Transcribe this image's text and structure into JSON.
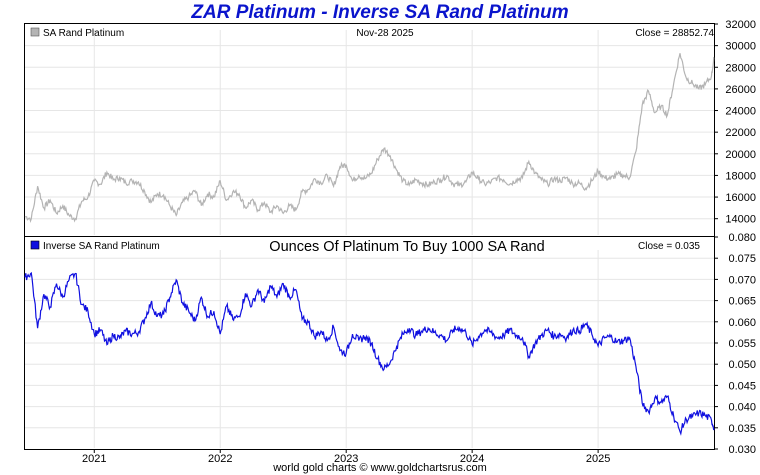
{
  "page": {
    "title": "ZAR Platinum - Inverse SA Rand Platinum",
    "footer": "world gold charts © www.goldchartsrus.com"
  },
  "colors": {
    "title": "#0a14cc",
    "top_series": "#b4b4b4",
    "bottom_series": "#1010e0",
    "grid": "#e6e6e6",
    "frame": "#000000"
  },
  "chart_data": [
    {
      "type": "line",
      "panel": "top",
      "legend": "SA Rand Platinum",
      "date_label": "Nov-28  2025",
      "close_label": "Close = 28852.74",
      "ylim": [
        12400,
        32000
      ],
      "yticks": [
        "32000",
        "30000",
        "28000",
        "26000",
        "24000",
        "22000",
        "20000",
        "18000",
        "16000",
        "14000"
      ],
      "ytick_values": [
        32000,
        30000,
        28000,
        26000,
        24000,
        22000,
        20000,
        18000,
        16000,
        14000
      ],
      "x_range": [
        2020.45,
        2025.92
      ],
      "series": [
        {
          "name": "SA Rand Platinum",
          "x": [
            2020.45,
            2020.5,
            2020.55,
            2020.6,
            2020.65,
            2020.7,
            2020.75,
            2020.8,
            2020.85,
            2020.9,
            2020.95,
            2021.0,
            2021.05,
            2021.1,
            2021.15,
            2021.2,
            2021.25,
            2021.3,
            2021.35,
            2021.4,
            2021.45,
            2021.5,
            2021.55,
            2021.6,
            2021.65,
            2021.7,
            2021.75,
            2021.8,
            2021.85,
            2021.9,
            2021.95,
            2022.0,
            2022.05,
            2022.1,
            2022.15,
            2022.2,
            2022.25,
            2022.3,
            2022.35,
            2022.4,
            2022.45,
            2022.5,
            2022.55,
            2022.6,
            2022.65,
            2022.7,
            2022.75,
            2022.8,
            2022.85,
            2022.9,
            2022.95,
            2023.0,
            2023.05,
            2023.1,
            2023.15,
            2023.2,
            2023.25,
            2023.3,
            2023.35,
            2023.4,
            2023.45,
            2023.5,
            2023.55,
            2023.6,
            2023.65,
            2023.7,
            2023.75,
            2023.8,
            2023.85,
            2023.9,
            2023.95,
            2024.0,
            2024.05,
            2024.1,
            2024.15,
            2024.2,
            2024.25,
            2024.3,
            2024.35,
            2024.4,
            2024.45,
            2024.5,
            2024.55,
            2024.6,
            2024.65,
            2024.7,
            2024.75,
            2024.8,
            2024.85,
            2024.9,
            2024.95,
            2025.0,
            2025.05,
            2025.1,
            2025.15,
            2025.2,
            2025.25,
            2025.3,
            2025.35,
            2025.4,
            2025.45,
            2025.5,
            2025.55,
            2025.6,
            2025.65,
            2025.7,
            2025.75,
            2025.8,
            2025.85,
            2025.9,
            2025.92
          ],
          "values": [
            14200,
            14000,
            17000,
            15000,
            15700,
            14500,
            15200,
            14300,
            14000,
            15600,
            16000,
            17500,
            17200,
            18300,
            17600,
            17800,
            17300,
            17500,
            17400,
            16500,
            15500,
            16300,
            16200,
            15200,
            14300,
            15500,
            16000,
            16600,
            15200,
            16300,
            16000,
            17500,
            15700,
            16500,
            16300,
            15000,
            15700,
            14800,
            15500,
            14600,
            15200,
            14500,
            15200,
            14800,
            16500,
            16700,
            17700,
            17300,
            18000,
            17000,
            18800,
            19000,
            17500,
            18000,
            17700,
            18200,
            19500,
            20500,
            19800,
            18500,
            17500,
            17100,
            17600,
            17300,
            17100,
            17400,
            17600,
            18000,
            17200,
            17100,
            17400,
            18300,
            17700,
            17200,
            17400,
            17800,
            17600,
            17200,
            17600,
            17800,
            19300,
            18200,
            17600,
            17200,
            17700,
            17500,
            17800,
            17200,
            17300,
            16800,
            17500,
            18400,
            17800,
            17700,
            18100,
            18000,
            17800,
            20200,
            24500,
            25800,
            23800,
            24400,
            23600,
            26500,
            29300,
            27000,
            26500,
            26000,
            26400,
            27200,
            28852.74
          ]
        }
      ]
    },
    {
      "type": "line",
      "panel": "bottom",
      "legend": "Inverse SA Rand Platinum",
      "title": "Ounces Of Platinum To Buy 1000 SA Rand",
      "close_label": "Close = 0.035",
      "ylim": [
        0.03,
        0.08
      ],
      "yticks": [
        "0.080",
        "0.075",
        "0.070",
        "0.065",
        "0.060",
        "0.055",
        "0.050",
        "0.045",
        "0.040",
        "0.035",
        "0.030"
      ],
      "ytick_values": [
        0.08,
        0.075,
        0.07,
        0.065,
        0.06,
        0.055,
        0.05,
        0.045,
        0.04,
        0.035,
        0.03
      ],
      "x_range": [
        2020.45,
        2025.92
      ],
      "xticks": [
        "2021",
        "2022",
        "2023",
        "2024",
        "2025"
      ],
      "xtick_values": [
        2021,
        2022,
        2023,
        2024,
        2025
      ],
      "series": [
        {
          "name": "Inverse SA Rand Platinum",
          "x": [
            2020.45,
            2020.5,
            2020.55,
            2020.6,
            2020.65,
            2020.7,
            2020.75,
            2020.8,
            2020.85,
            2020.9,
            2020.95,
            2021.0,
            2021.05,
            2021.1,
            2021.15,
            2021.2,
            2021.25,
            2021.3,
            2021.35,
            2021.4,
            2021.45,
            2021.5,
            2021.55,
            2021.6,
            2021.65,
            2021.7,
            2021.75,
            2021.8,
            2021.85,
            2021.9,
            2021.95,
            2022.0,
            2022.05,
            2022.1,
            2022.15,
            2022.2,
            2022.25,
            2022.3,
            2022.35,
            2022.4,
            2022.45,
            2022.5,
            2022.55,
            2022.6,
            2022.65,
            2022.7,
            2022.75,
            2022.8,
            2022.85,
            2022.9,
            2022.95,
            2023.0,
            2023.05,
            2023.1,
            2023.15,
            2023.2,
            2023.25,
            2023.3,
            2023.35,
            2023.4,
            2023.45,
            2023.5,
            2023.55,
            2023.6,
            2023.65,
            2023.7,
            2023.75,
            2023.8,
            2023.85,
            2023.9,
            2023.95,
            2024.0,
            2024.05,
            2024.1,
            2024.15,
            2024.2,
            2024.25,
            2024.3,
            2024.35,
            2024.4,
            2024.45,
            2024.5,
            2024.55,
            2024.6,
            2024.65,
            2024.7,
            2024.75,
            2024.8,
            2024.85,
            2024.9,
            2024.95,
            2025.0,
            2025.05,
            2025.1,
            2025.15,
            2025.2,
            2025.25,
            2025.3,
            2025.35,
            2025.4,
            2025.45,
            2025.5,
            2025.55,
            2025.6,
            2025.65,
            2025.7,
            2025.75,
            2025.8,
            2025.85,
            2025.9,
            2025.92
          ],
          "values": [
            0.0705,
            0.0715,
            0.0585,
            0.0665,
            0.0635,
            0.069,
            0.0658,
            0.0699,
            0.0714,
            0.0641,
            0.0625,
            0.0571,
            0.0581,
            0.0546,
            0.0568,
            0.0562,
            0.0578,
            0.0571,
            0.0575,
            0.0606,
            0.0645,
            0.0613,
            0.0617,
            0.0658,
            0.0699,
            0.0645,
            0.0625,
            0.0602,
            0.0658,
            0.0613,
            0.0625,
            0.0571,
            0.0637,
            0.0606,
            0.0613,
            0.0667,
            0.0637,
            0.0676,
            0.0645,
            0.0685,
            0.0658,
            0.069,
            0.0658,
            0.0676,
            0.0606,
            0.0599,
            0.0565,
            0.0578,
            0.0556,
            0.0588,
            0.0532,
            0.0526,
            0.0571,
            0.0556,
            0.0565,
            0.0549,
            0.0513,
            0.0488,
            0.0505,
            0.0541,
            0.0571,
            0.0585,
            0.0568,
            0.0578,
            0.0585,
            0.0575,
            0.0568,
            0.0556,
            0.0581,
            0.0585,
            0.0575,
            0.0546,
            0.0565,
            0.0581,
            0.0575,
            0.0562,
            0.0568,
            0.0581,
            0.0568,
            0.0562,
            0.0518,
            0.0549,
            0.0568,
            0.0581,
            0.0565,
            0.0571,
            0.0562,
            0.0581,
            0.0578,
            0.0595,
            0.0571,
            0.0543,
            0.0562,
            0.0565,
            0.0552,
            0.0556,
            0.0562,
            0.0495,
            0.0408,
            0.0388,
            0.042,
            0.041,
            0.0424,
            0.0377,
            0.0341,
            0.037,
            0.0377,
            0.0385,
            0.0379,
            0.0368,
            0.035
          ]
        }
      ]
    }
  ]
}
